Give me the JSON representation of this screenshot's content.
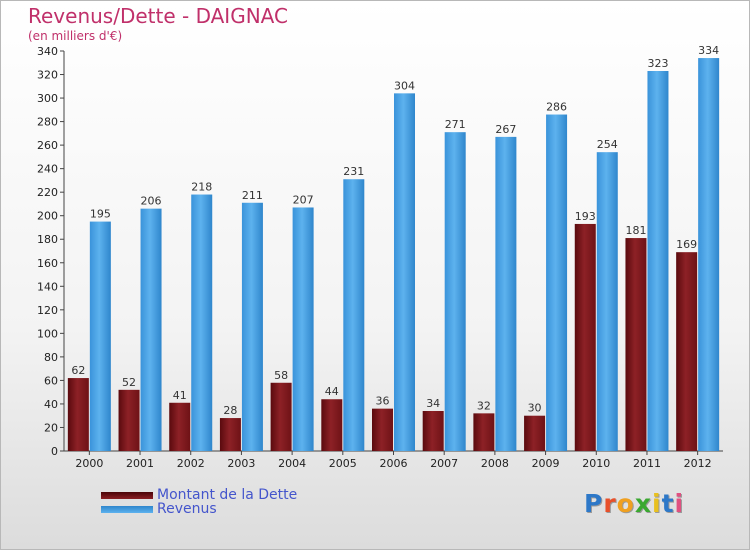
{
  "header": {
    "title": "Revenus/Dette - DAIGNAC",
    "subtitle": "(en milliers d'€)"
  },
  "legend": {
    "debt_label": "Montant de la Dette",
    "revenue_label": "Revenus"
  },
  "logo": {
    "letters": [
      "P",
      "r",
      "o",
      "x",
      "i",
      "t",
      "i"
    ],
    "colors": [
      "#2d78c8",
      "#e8502a",
      "#f0a020",
      "#3aa830",
      "#e8c020",
      "#2d78c8",
      "#e05080"
    ]
  },
  "colors": {
    "debt": "#8b1f24",
    "revenue": "#4aa3e6"
  },
  "chart_data": {
    "type": "bar",
    "title": "Revenus/Dette - DAIGNAC",
    "subtitle": "(en milliers d'€)",
    "categories": [
      "2000",
      "2001",
      "2002",
      "2003",
      "2004",
      "2005",
      "2006",
      "2007",
      "2008",
      "2009",
      "2010",
      "2011",
      "2012"
    ],
    "series": [
      {
        "name": "Montant de la Dette",
        "values": [
          62,
          52,
          41,
          28,
          58,
          44,
          36,
          34,
          32,
          30,
          193,
          181,
          169
        ]
      },
      {
        "name": "Revenus",
        "values": [
          195,
          206,
          218,
          211,
          207,
          231,
          304,
          271,
          267,
          286,
          254,
          323,
          334
        ]
      }
    ],
    "ylim": [
      0,
      340
    ],
    "ytick_step": 20,
    "grid": false,
    "legend_position": "bottom-left"
  }
}
